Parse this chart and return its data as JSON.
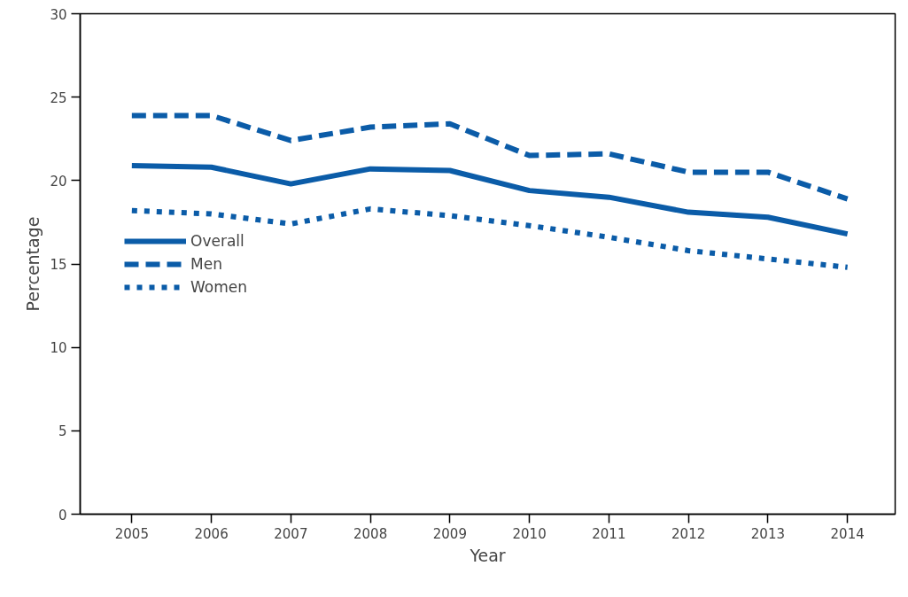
{
  "chart_data": {
    "type": "line",
    "xlabel": "Year",
    "ylabel": "Percentage",
    "x": [
      2005,
      2006,
      2007,
      2008,
      2009,
      2010,
      2011,
      2012,
      2013,
      2014
    ],
    "xlim": [
      2004.35,
      2014.6
    ],
    "xticks": [
      2005,
      2006,
      2007,
      2008,
      2009,
      2010,
      2011,
      2012,
      2013,
      2014
    ],
    "ylim": [
      0,
      30
    ],
    "yticks": [
      0,
      5,
      10,
      15,
      20,
      25,
      30
    ],
    "grid": false,
    "legend": "left",
    "marker": "none",
    "series": [
      {
        "name": "Overall",
        "color": "#0b5ca8",
        "line_style": "solid",
        "values": [
          20.9,
          20.8,
          19.8,
          20.7,
          20.6,
          19.4,
          19.0,
          18.1,
          17.8,
          16.8
        ]
      },
      {
        "name": "Men",
        "color": "#0b5ca8",
        "line_style": "dashed",
        "values": [
          23.9,
          23.9,
          22.4,
          23.2,
          23.4,
          21.5,
          21.6,
          20.5,
          20.5,
          18.9
        ]
      },
      {
        "name": "Women",
        "color": "#0b5ca8",
        "line_style": "dotted",
        "values": [
          18.2,
          18.0,
          17.4,
          18.3,
          17.9,
          17.3,
          16.6,
          15.8,
          15.3,
          14.8
        ]
      }
    ]
  }
}
